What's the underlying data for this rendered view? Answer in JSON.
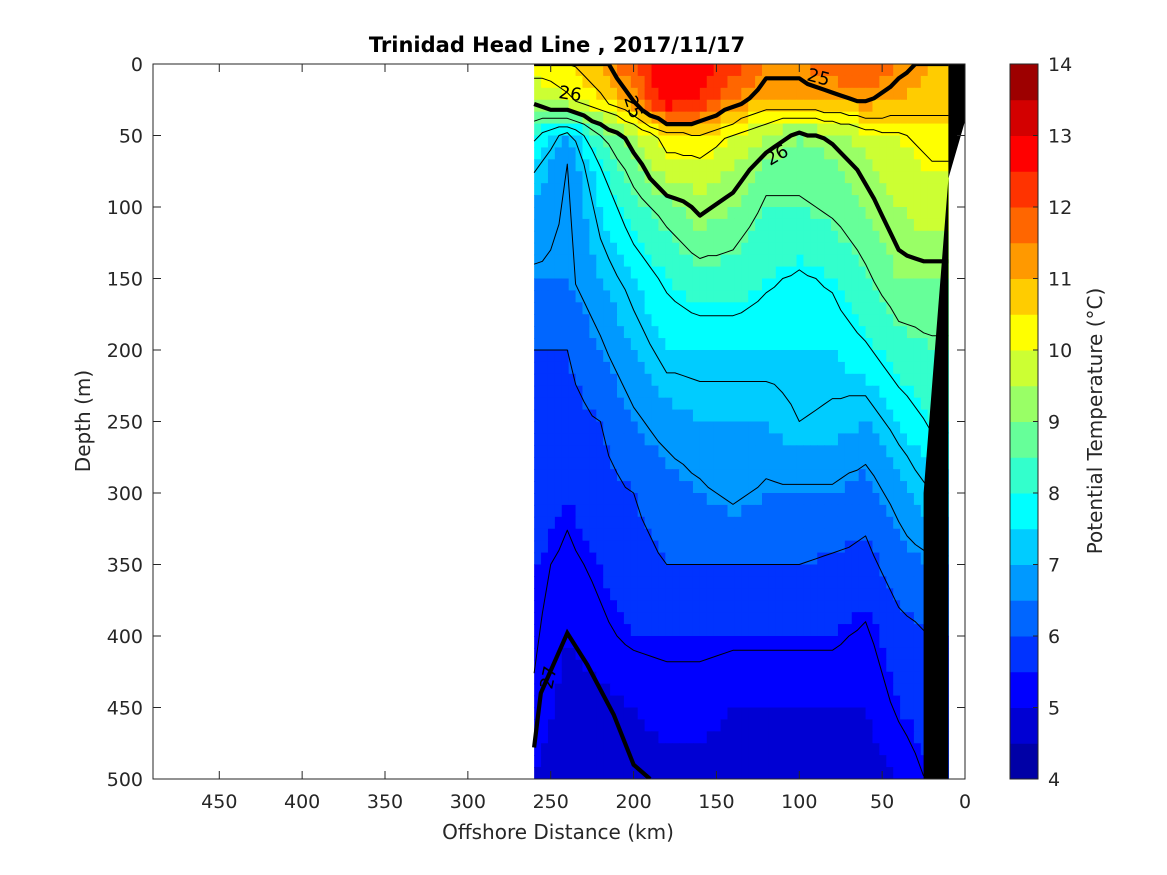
{
  "chart_data": {
    "type": "contourf",
    "title": "Trinidad Head Line , 2017/11/17",
    "xlabel": "Offshore Distance (km)",
    "ylabel": "Depth (m)",
    "colorbar_label": "Potential Temperature (°C)",
    "xlim": [
      490,
      0
    ],
    "ylim": [
      0,
      500
    ],
    "y_reversed": true,
    "x_ticks": [
      450,
      400,
      350,
      300,
      250,
      200,
      150,
      100,
      50,
      0
    ],
    "y_ticks": [
      0,
      50,
      100,
      150,
      200,
      250,
      300,
      350,
      400,
      450,
      500
    ],
    "colorbar_ticks": [
      4,
      5,
      6,
      7,
      8,
      9,
      10,
      11,
      12,
      13,
      14
    ],
    "colorbar_range": [
      4,
      14
    ],
    "level_step": 0.5,
    "colorscale": [
      "#00008f",
      "#0000c8",
      "#0000ff",
      "#0040ff",
      "#0080ff",
      "#00bfff",
      "#00ffff",
      "#40ffbf",
      "#80ff80",
      "#bfff40",
      "#ffff00",
      "#ffbf00",
      "#ff8000",
      "#ff4000",
      "#ff0000",
      "#c80000",
      "#800000"
    ],
    "data_extent_km": [
      10,
      260
    ],
    "stations_x": [
      260,
      240,
      220,
      200,
      180,
      160,
      140,
      120,
      100,
      80,
      60,
      40,
      20,
      10
    ],
    "depths": [
      0,
      25,
      50,
      75,
      100,
      150,
      200,
      250,
      300,
      350,
      400,
      450,
      500
    ],
    "temperature": [
      [
        10.5,
        10.5,
        11.0,
        12.0,
        13.0,
        12.8,
        12.3,
        11.5,
        11.5,
        11.7,
        12.0,
        11.5,
        11.0,
        11.0
      ],
      [
        9.3,
        10.0,
        10.5,
        11.3,
        13.0,
        12.5,
        11.5,
        11.0,
        11.0,
        11.2,
        11.3,
        11.0,
        10.8,
        10.8
      ],
      [
        8.0,
        7.0,
        8.5,
        9.5,
        10.3,
        10.5,
        10.0,
        9.5,
        9.0,
        9.3,
        9.8,
        10.0,
        10.3,
        10.3
      ],
      [
        7.3,
        6.5,
        7.8,
        8.8,
        9.8,
        9.8,
        9.5,
        8.8,
        8.8,
        8.8,
        9.3,
        9.8,
        10.0,
        10.0
      ],
      [
        7.0,
        6.5,
        7.5,
        8.3,
        8.8,
        9.3,
        9.0,
        8.5,
        8.5,
        8.7,
        9.0,
        9.5,
        9.8,
        9.8
      ],
      [
        6.5,
        6.5,
        7.0,
        7.5,
        8.0,
        8.3,
        8.3,
        8.0,
        7.8,
        8.0,
        8.5,
        9.0,
        9.0,
        9.0
      ],
      [
        6.0,
        6.0,
        6.5,
        7.0,
        7.5,
        7.5,
        7.5,
        7.5,
        7.5,
        7.5,
        7.8,
        8.3,
        8.5,
        8.5
      ],
      [
        6.0,
        5.8,
        6.0,
        6.5,
        6.8,
        7.0,
        7.0,
        7.0,
        7.3,
        7.2,
        7.0,
        7.5,
        8.0,
        8.0
      ],
      [
        5.8,
        5.5,
        5.8,
        6.0,
        6.3,
        6.5,
        6.7,
        6.5,
        6.5,
        6.5,
        6.3,
        6.8,
        7.3,
        7.3
      ],
      [
        5.5,
        5.3,
        5.5,
        5.8,
        6.0,
        6.0,
        6.0,
        6.0,
        6.0,
        5.9,
        5.8,
        6.3,
        6.5,
        6.5
      ],
      [
        5.5,
        5.0,
        5.3,
        5.5,
        5.5,
        5.5,
        5.5,
        5.5,
        5.5,
        5.5,
        5.3,
        5.8,
        6.0,
        6.0
      ],
      [
        5.3,
        4.8,
        4.8,
        5.0,
        5.2,
        5.2,
        5.0,
        5.0,
        5.0,
        5.0,
        5.0,
        5.5,
        5.8,
        5.8
      ],
      [
        5.0,
        4.5,
        4.7,
        4.8,
        4.8,
        4.8,
        4.8,
        4.7,
        4.8,
        4.8,
        4.8,
        5.0,
        5.5,
        5.5
      ]
    ],
    "bottom_profile": [
      [
        0,
        0
      ],
      [
        10,
        0
      ],
      [
        10,
        500
      ],
      [
        25,
        500
      ],
      [
        25,
        300
      ],
      [
        10,
        80
      ],
      [
        0,
        40
      ]
    ],
    "isopycnal_labels": [
      "25",
      "25",
      "26",
      "26",
      "27"
    ]
  }
}
